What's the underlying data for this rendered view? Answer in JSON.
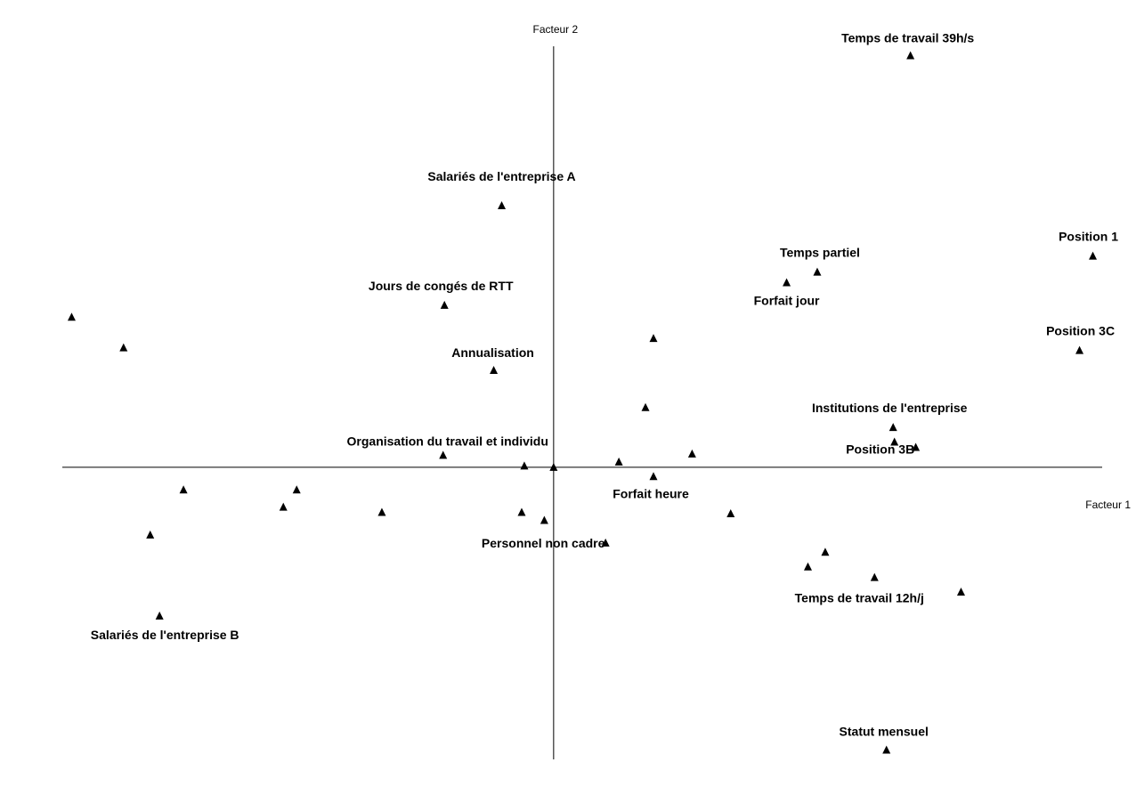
{
  "chart_data": {
    "type": "scatter",
    "title": "",
    "xlabel": "Facteur 1",
    "ylabel": "Facteur 2",
    "xlim": [
      -3.69,
      4.12
    ],
    "ylim": [
      -2.2,
      3.17
    ],
    "grid": false,
    "legend": "none",
    "marker": "triangle",
    "points": [
      {
        "x": 2.68,
        "y": 3.1,
        "label": "Temps de travail 39h/s"
      },
      {
        "x": -0.39,
        "y": 1.97,
        "label": "Salariés de l'entreprise A"
      },
      {
        "x": 4.05,
        "y": 1.59,
        "label": "Position 1"
      },
      {
        "x": 1.98,
        "y": 1.47,
        "label": "Temps partiel"
      },
      {
        "x": 1.75,
        "y": 1.39,
        "label": "Forfait jour"
      },
      {
        "x": -0.82,
        "y": 1.22,
        "label": "Jours de congés de RTT"
      },
      {
        "x": -3.62,
        "y": 1.13,
        "label": ""
      },
      {
        "x": -3.23,
        "y": 0.9,
        "label": ""
      },
      {
        "x": 0.75,
        "y": 0.97,
        "label": ""
      },
      {
        "x": 3.95,
        "y": 0.88,
        "label": "Position 3C"
      },
      {
        "x": -0.45,
        "y": 0.73,
        "label": "Annualisation"
      },
      {
        "x": 0.69,
        "y": 0.45,
        "label": ""
      },
      {
        "x": 2.55,
        "y": 0.3,
        "label": "Institutions de l'entreprise"
      },
      {
        "x": 2.56,
        "y": 0.19,
        "label": "Position 3B"
      },
      {
        "x": 2.72,
        "y": 0.15,
        "label": ""
      },
      {
        "x": 1.04,
        "y": 0.1,
        "label": ""
      },
      {
        "x": -0.83,
        "y": 0.09,
        "label": "Organisation du travail et individu"
      },
      {
        "x": 0.49,
        "y": 0.04,
        "label": ""
      },
      {
        "x": -0.22,
        "y": 0.01,
        "label": ""
      },
      {
        "x": 0.0,
        "y": 0.0,
        "label": ""
      },
      {
        "x": 0.75,
        "y": -0.07,
        "label": "Forfait heure"
      },
      {
        "x": -2.78,
        "y": -0.17,
        "label": ""
      },
      {
        "x": -1.93,
        "y": -0.17,
        "label": ""
      },
      {
        "x": -2.03,
        "y": -0.3,
        "label": ""
      },
      {
        "x": -1.29,
        "y": -0.34,
        "label": ""
      },
      {
        "x": -0.24,
        "y": -0.34,
        "label": ""
      },
      {
        "x": -0.07,
        "y": -0.4,
        "label": ""
      },
      {
        "x": 1.33,
        "y": -0.35,
        "label": ""
      },
      {
        "x": -3.03,
        "y": -0.51,
        "label": ""
      },
      {
        "x": 0.39,
        "y": -0.57,
        "label": "Personnel non cadre"
      },
      {
        "x": 2.04,
        "y": -0.64,
        "label": ""
      },
      {
        "x": 1.91,
        "y": -0.75,
        "label": ""
      },
      {
        "x": 2.41,
        "y": -0.83,
        "label": "Temps de travail 12h/j"
      },
      {
        "x": 3.06,
        "y": -0.94,
        "label": ""
      },
      {
        "x": -2.96,
        "y": -1.12,
        "label": "Salariés de l'entreprise B"
      },
      {
        "x": 2.5,
        "y": -2.13,
        "label": "Statut mensuel"
      }
    ]
  }
}
